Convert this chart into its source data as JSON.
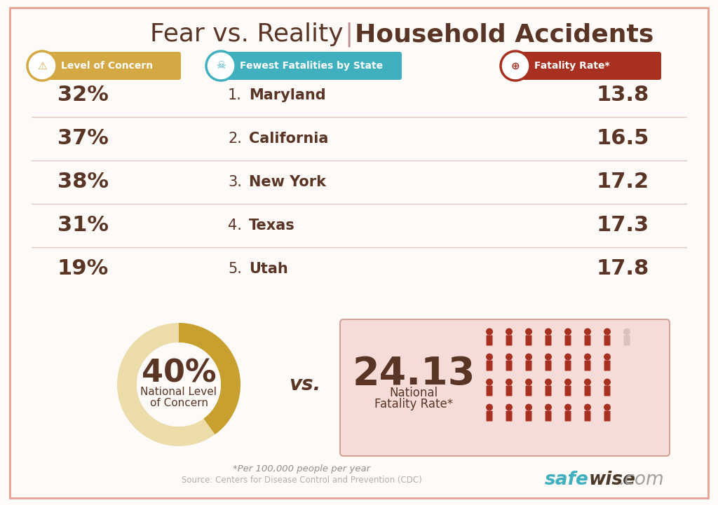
{
  "title_light": "Fear vs. Reality",
  "title_bold": "Household Accidents",
  "bg_color": "#fefaf8",
  "border_color": "#e8a090",
  "header_col1": "Level of Concern",
  "header_col2": "Fewest Fatalities by State",
  "header_col3": "Fatality Rate*",
  "header_col1_bg": "#d4a843",
  "header_col2_bg": "#40b0be",
  "header_col3_bg": "#a83020",
  "rows": [
    {
      "concern": "32%",
      "rank": "1.",
      "state": "Maryland",
      "rate": "13.8"
    },
    {
      "concern": "37%",
      "rank": "2.",
      "state": "California",
      "rate": "16.5"
    },
    {
      "concern": "38%",
      "rank": "3.",
      "state": "New York",
      "rate": "17.2"
    },
    {
      "concern": "31%",
      "rank": "4.",
      "state": "Texas",
      "rate": "17.3"
    },
    {
      "concern": "19%",
      "rank": "5.",
      "state": "Utah",
      "rate": "17.8"
    }
  ],
  "national_concern": "40%",
  "national_concern_label1": "National Level",
  "national_concern_label2": "of Concern",
  "vs_text": "vs.",
  "national_rate": "24.13",
  "national_rate_label1": "National",
  "national_rate_label2": "Fatality Rate*",
  "donut_dark": "#c8a030",
  "donut_light": "#ecdcaa",
  "donut_pct": 40,
  "rate_box_bg": "#f5dcd8",
  "rate_box_border": "#d4a098",
  "footnote": "*Per 100,000 people per year",
  "source": "Source: Centers for Disease Control and Prevention (CDC)",
  "text_color": "#5a3525",
  "row_line_color": "#e0c8c0",
  "person_color": "#a83020",
  "person_light_color": "#c8b0a8",
  "safewise_teal": "#40b0be",
  "safewise_dark": "#4a3828"
}
